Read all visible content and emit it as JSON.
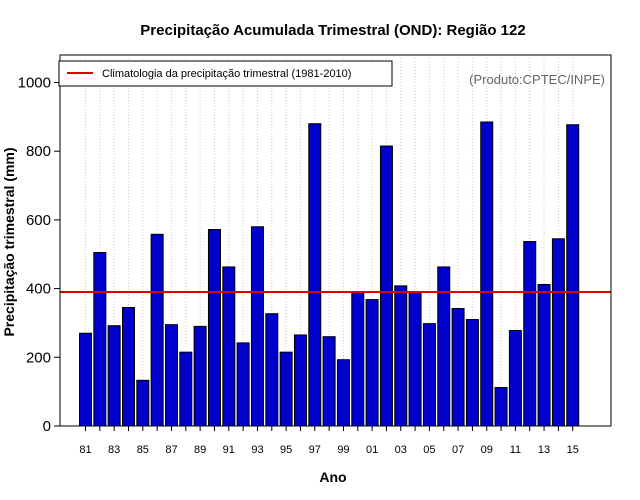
{
  "chart_data": {
    "type": "bar",
    "title": "Precipitação Acumulada Trimestral (OND): Região 122",
    "xlabel": "Ano",
    "ylabel": "Precipitação trimestral (mm)",
    "credit": "(Produto:CPTEC/INPE)",
    "ylim": [
      0,
      1080
    ],
    "yticks": [
      "0",
      "200",
      "400",
      "600",
      "800",
      "1000"
    ],
    "grid": true,
    "categories": [
      "81",
      "82",
      "83",
      "84",
      "85",
      "86",
      "87",
      "88",
      "89",
      "90",
      "91",
      "92",
      "93",
      "94",
      "95",
      "96",
      "97",
      "98",
      "99",
      "00",
      "01",
      "02",
      "03",
      "04",
      "05",
      "06",
      "07",
      "08",
      "09",
      "10",
      "11",
      "12",
      "13",
      "14",
      "15"
    ],
    "xtick_labels": [
      "81",
      "83",
      "85",
      "87",
      "89",
      "91",
      "93",
      "95",
      "97",
      "99",
      "01",
      "03",
      "05",
      "07",
      "09",
      "11",
      "13",
      "15"
    ],
    "values": [
      270,
      505,
      292,
      345,
      133,
      558,
      295,
      215,
      290,
      572,
      463,
      242,
      580,
      327,
      215,
      265,
      880,
      260,
      193,
      390,
      368,
      815,
      408,
      390,
      298,
      463,
      342,
      310,
      885,
      112,
      278,
      537,
      412,
      545,
      877
    ],
    "climatology": {
      "label": "Climatologia da precipitação trimestral (1981-2010)",
      "value": 390,
      "color": "#dd0000"
    },
    "bar_color": "#0000cc",
    "legend_position": "top-left"
  }
}
